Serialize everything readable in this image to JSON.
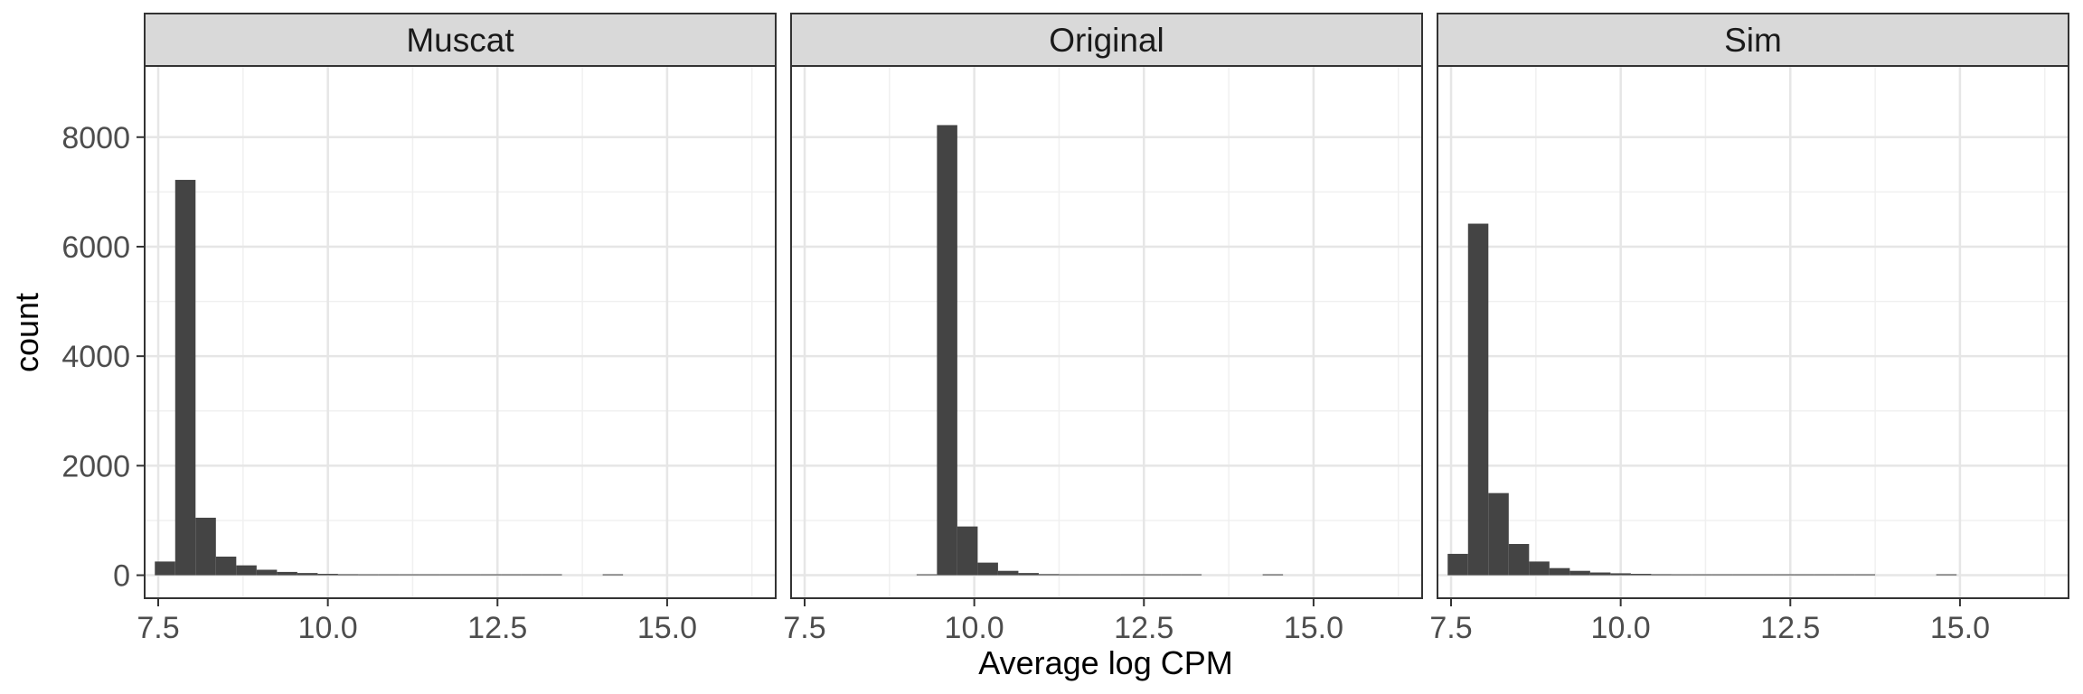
{
  "chart_data": {
    "type": "bar",
    "xlabel": "Average log CPM",
    "ylabel": "count",
    "xlim": [
      7.3,
      16.6
    ],
    "ylim": [
      -420,
      9300
    ],
    "x_ticks": [
      7.5,
      10.0,
      12.5,
      15.0
    ],
    "x_tick_labels": [
      "7.5",
      "10.0",
      "12.5",
      "15.0"
    ],
    "y_ticks": [
      0,
      2000,
      4000,
      6000,
      8000
    ],
    "y_tick_labels": [
      "0",
      "2000",
      "4000",
      "6000",
      "8000"
    ],
    "grid": true,
    "bar_color": "#444444",
    "bin_width": 0.3,
    "panels": [
      {
        "name": "Muscat",
        "bins": [
          {
            "x": 7.6,
            "count": 250
          },
          {
            "x": 7.9,
            "count": 7220
          },
          {
            "x": 8.2,
            "count": 1050
          },
          {
            "x": 8.5,
            "count": 340
          },
          {
            "x": 8.8,
            "count": 180
          },
          {
            "x": 9.1,
            "count": 100
          },
          {
            "x": 9.4,
            "count": 60
          },
          {
            "x": 9.7,
            "count": 40
          },
          {
            "x": 10.0,
            "count": 25
          },
          {
            "x": 10.3,
            "count": 18
          },
          {
            "x": 10.6,
            "count": 12
          },
          {
            "x": 10.9,
            "count": 8
          },
          {
            "x": 11.2,
            "count": 6
          },
          {
            "x": 11.5,
            "count": 4
          },
          {
            "x": 11.8,
            "count": 3
          },
          {
            "x": 12.1,
            "count": 2
          },
          {
            "x": 12.4,
            "count": 2
          },
          {
            "x": 12.7,
            "count": 2
          },
          {
            "x": 13.0,
            "count": 1
          },
          {
            "x": 13.3,
            "count": 1
          },
          {
            "x": 14.2,
            "count": 1
          }
        ]
      },
      {
        "name": "Original",
        "bins": [
          {
            "x": 9.3,
            "count": 10
          },
          {
            "x": 9.6,
            "count": 8220
          },
          {
            "x": 9.9,
            "count": 890
          },
          {
            "x": 10.2,
            "count": 230
          },
          {
            "x": 10.5,
            "count": 80
          },
          {
            "x": 10.8,
            "count": 40
          },
          {
            "x": 11.1,
            "count": 20
          },
          {
            "x": 11.4,
            "count": 12
          },
          {
            "x": 11.7,
            "count": 8
          },
          {
            "x": 12.0,
            "count": 6
          },
          {
            "x": 12.3,
            "count": 4
          },
          {
            "x": 12.6,
            "count": 3
          },
          {
            "x": 12.9,
            "count": 2
          },
          {
            "x": 13.2,
            "count": 2
          },
          {
            "x": 14.4,
            "count": 1
          }
        ]
      },
      {
        "name": "Sim",
        "bins": [
          {
            "x": 7.6,
            "count": 390
          },
          {
            "x": 7.9,
            "count": 6420
          },
          {
            "x": 8.2,
            "count": 1500
          },
          {
            "x": 8.5,
            "count": 570
          },
          {
            "x": 8.8,
            "count": 250
          },
          {
            "x": 9.1,
            "count": 130
          },
          {
            "x": 9.4,
            "count": 80
          },
          {
            "x": 9.7,
            "count": 50
          },
          {
            "x": 10.0,
            "count": 35
          },
          {
            "x": 10.3,
            "count": 25
          },
          {
            "x": 10.6,
            "count": 18
          },
          {
            "x": 10.9,
            "count": 12
          },
          {
            "x": 11.2,
            "count": 8
          },
          {
            "x": 11.5,
            "count": 6
          },
          {
            "x": 11.8,
            "count": 5
          },
          {
            "x": 12.1,
            "count": 4
          },
          {
            "x": 12.4,
            "count": 3
          },
          {
            "x": 12.7,
            "count": 2
          },
          {
            "x": 13.0,
            "count": 2
          },
          {
            "x": 13.3,
            "count": 1
          },
          {
            "x": 13.6,
            "count": 1
          },
          {
            "x": 14.8,
            "count": 1
          }
        ]
      }
    ]
  }
}
